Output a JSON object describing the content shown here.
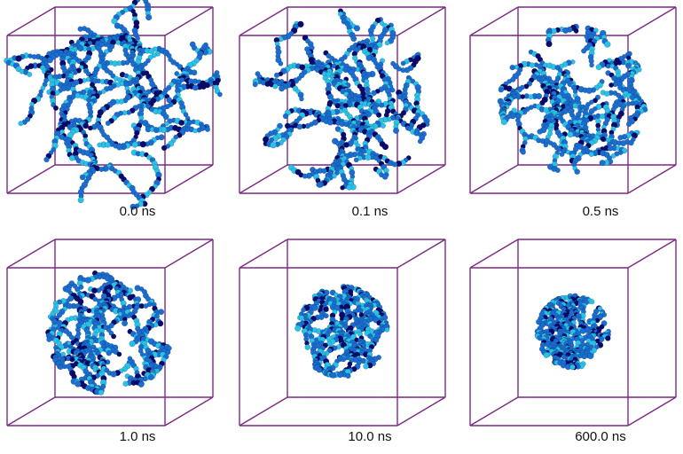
{
  "figure": {
    "colors": {
      "box_edge": "#7a2a82",
      "bead_dark": "#0a0a6b",
      "bead_mid": "#1a6ecf",
      "bead_light": "#29c1e6"
    },
    "panels": [
      {
        "label": "0.0 ns",
        "morphology": "dispersed-chains",
        "aggregation": 0.0
      },
      {
        "label": "0.1 ns",
        "morphology": "loose-cluster",
        "aggregation": 0.25
      },
      {
        "label": "0.5 ns",
        "morphology": "cluster",
        "aggregation": 0.45
      },
      {
        "label": "1.0 ns",
        "morphology": "cluster",
        "aggregation": 0.6
      },
      {
        "label": "10.0 ns",
        "morphology": "globule",
        "aggregation": 0.85
      },
      {
        "label": "600.0 ns",
        "morphology": "globule",
        "aggregation": 1.0
      }
    ]
  }
}
